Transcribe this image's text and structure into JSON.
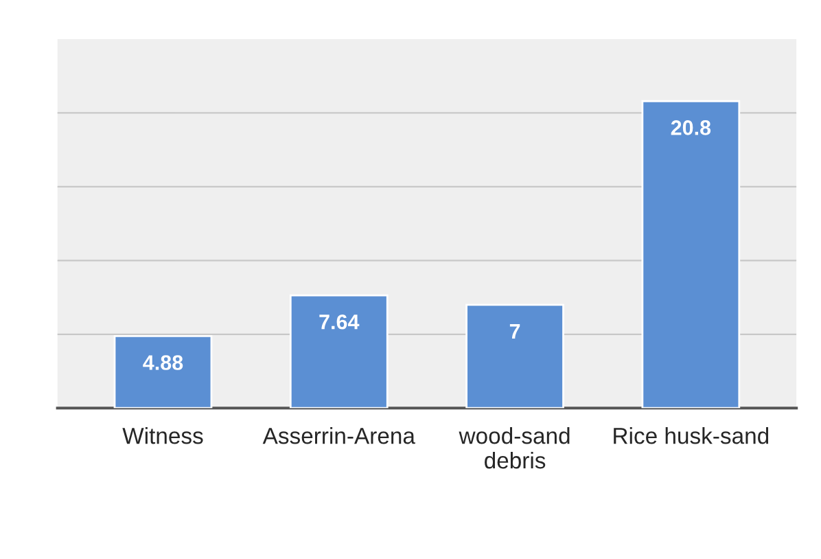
{
  "chart_data": {
    "type": "bar",
    "categories": [
      "Witness",
      "Asserrin-Arena",
      "wood-sand\ndebris",
      "Rice husk-sand"
    ],
    "values": [
      4.88,
      7.64,
      7,
      20.8
    ],
    "color": "#5b8fd3",
    "data_labels": true,
    "ylim": [
      0,
      25
    ],
    "yticks": [
      {
        "value": 0,
        "label": null
      },
      {
        "value": 5,
        "label": null
      },
      {
        "value": 10,
        "label": null
      },
      {
        "value": 15,
        "label": null
      },
      {
        "value": 20,
        "label": null
      }
    ],
    "grid": "y",
    "tick_labels": "x"
  }
}
